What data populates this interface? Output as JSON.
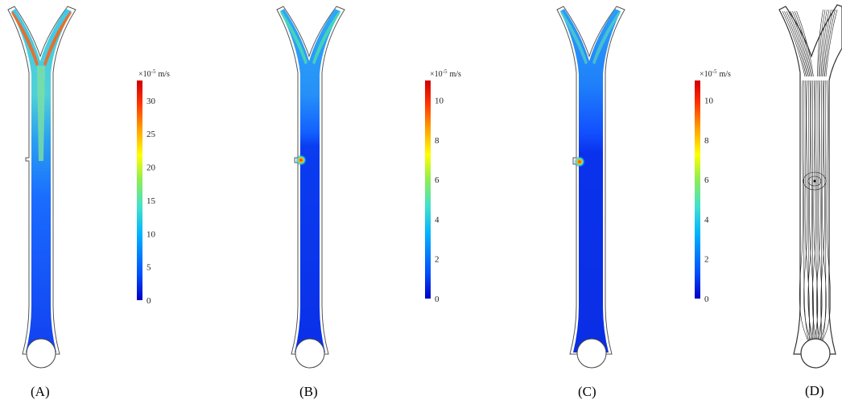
{
  "panels": [
    {
      "label": "(A)",
      "colorbar": {
        "unit_prefix": "×10",
        "unit_exp": "-5",
        "unit": "m/s",
        "ticks": [
          "0",
          "5",
          "10",
          "15",
          "20",
          "25",
          "30"
        ],
        "max": 33
      }
    },
    {
      "label": "(B)",
      "colorbar": {
        "unit_prefix": "×10",
        "unit_exp": "-5",
        "unit": "m/s",
        "ticks": [
          "0",
          "2",
          "4",
          "6",
          "8",
          "10"
        ],
        "max": 11
      }
    },
    {
      "label": "(C)",
      "colorbar": {
        "unit_prefix": "×10",
        "unit_exp": "-5",
        "unit": "m/s",
        "ticks": [
          "0",
          "2",
          "4",
          "6",
          "8",
          "10"
        ],
        "max": 11
      }
    },
    {
      "label": "(D)"
    }
  ],
  "colormap": [
    "#0000c8",
    "#0050ff",
    "#00b4ff",
    "#40e0d0",
    "#90ee50",
    "#ffff00",
    "#ffa000",
    "#ff3000",
    "#d00000"
  ]
}
